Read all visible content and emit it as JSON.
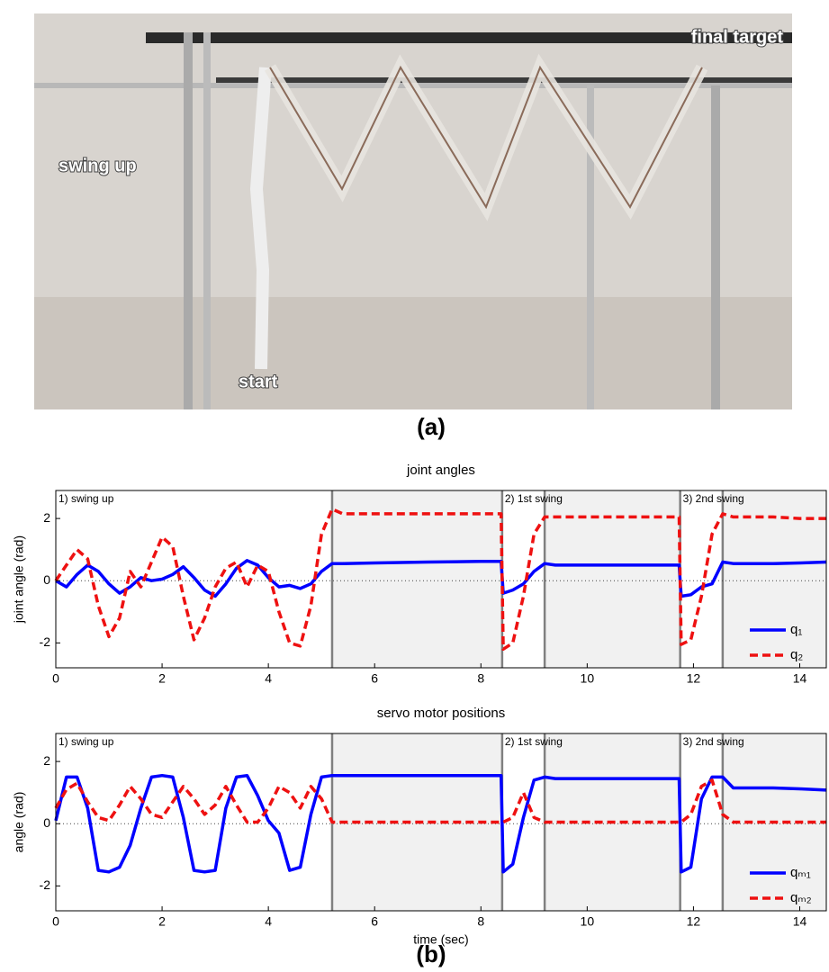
{
  "photo": {
    "labels": [
      "final target",
      "swing up",
      "start"
    ],
    "caption": "(a)"
  },
  "caption_b": "(b)",
  "chart_data": [
    {
      "type": "line",
      "title": "joint angles",
      "ylabel": "joint angle (rad)",
      "xlim": [
        0,
        14.5
      ],
      "xticks": [
        0,
        2,
        4,
        6,
        8,
        10,
        12,
        14
      ],
      "ylim": [
        -2.8,
        2.9
      ],
      "yticks": [
        -2,
        0,
        2
      ],
      "zero_line": true,
      "legend": "lower right",
      "shaded_regions": [
        [
          5.2,
          8.4
        ],
        [
          9.2,
          11.75
        ],
        [
          12.55,
          14.5
        ]
      ],
      "annotations": [
        {
          "text": "1) swing up",
          "x": 0
        },
        {
          "text": "2) 1st swing",
          "x": 8.4
        },
        {
          "text": "3) 2nd swing",
          "x": 11.75
        }
      ],
      "x": [
        0,
        0.2,
        0.4,
        0.6,
        0.8,
        1.0,
        1.2,
        1.4,
        1.6,
        1.8,
        2.0,
        2.2,
        2.4,
        2.6,
        2.8,
        3.0,
        3.2,
        3.4,
        3.6,
        3.8,
        4.0,
        4.2,
        4.4,
        4.6,
        4.8,
        5.0,
        5.2,
        5.4,
        6,
        7,
        8,
        8.38,
        8.42,
        8.6,
        8.8,
        9.0,
        9.2,
        9.4,
        10,
        11,
        11.73,
        11.77,
        11.95,
        12.15,
        12.35,
        12.55,
        12.75,
        13.5,
        14,
        14.5
      ],
      "series": [
        {
          "name": "q₁",
          "color": "#0000ff",
          "dashed": false,
          "values": [
            0,
            -0.2,
            0.2,
            0.5,
            0.3,
            -0.1,
            -0.4,
            -0.2,
            0.1,
            0,
            0.05,
            0.2,
            0.45,
            0.1,
            -0.3,
            -0.5,
            -0.1,
            0.4,
            0.65,
            0.5,
            0.1,
            -0.2,
            -0.15,
            -0.25,
            -0.1,
            0.3,
            0.55,
            0.55,
            0.57,
            0.6,
            0.62,
            0.62,
            -0.4,
            -0.3,
            -0.1,
            0.3,
            0.55,
            0.5,
            0.5,
            0.5,
            0.5,
            -0.5,
            -0.45,
            -0.2,
            -0.1,
            0.6,
            0.55,
            0.55,
            0.57,
            0.6
          ]
        },
        {
          "name": "q₂",
          "color": "#ee1111",
          "dashed": true,
          "values": [
            0,
            0.5,
            1.0,
            0.7,
            -0.8,
            -1.8,
            -1.2,
            0.3,
            -0.2,
            0.6,
            1.4,
            1.1,
            -0.5,
            -1.9,
            -1.2,
            -0.2,
            0.4,
            0.6,
            -0.2,
            0.5,
            0.3,
            -1.0,
            -2.0,
            -2.1,
            -0.8,
            1.5,
            2.3,
            2.15,
            2.15,
            2.15,
            2.15,
            2.15,
            -2.2,
            -2.0,
            -0.5,
            1.5,
            2.05,
            2.05,
            2.05,
            2.05,
            2.05,
            -2.05,
            -1.9,
            -0.5,
            1.5,
            2.15,
            2.05,
            2.05,
            2.0,
            2.0
          ]
        }
      ]
    },
    {
      "type": "line",
      "title": "servo motor positions",
      "ylabel": "angle (rad)",
      "xlabel": "time (sec)",
      "xlim": [
        0,
        14.5
      ],
      "xticks": [
        0,
        2,
        4,
        6,
        8,
        10,
        12,
        14
      ],
      "ylim": [
        -2.8,
        2.9
      ],
      "yticks": [
        -2,
        0,
        2
      ],
      "zero_line": true,
      "legend": "lower right",
      "shaded_regions": [
        [
          5.2,
          8.4
        ],
        [
          9.2,
          11.75
        ],
        [
          12.55,
          14.5
        ]
      ],
      "annotations": [
        {
          "text": "1) swing up",
          "x": 0
        },
        {
          "text": "2) 1st swing",
          "x": 8.4
        },
        {
          "text": "3) 2nd swing",
          "x": 11.75
        }
      ],
      "x": [
        0,
        0.2,
        0.4,
        0.6,
        0.8,
        1.0,
        1.2,
        1.4,
        1.6,
        1.8,
        2.0,
        2.2,
        2.4,
        2.6,
        2.8,
        3.0,
        3.2,
        3.4,
        3.6,
        3.8,
        4.0,
        4.2,
        4.4,
        4.6,
        4.8,
        5.0,
        5.2,
        5.4,
        6,
        7,
        8,
        8.38,
        8.42,
        8.6,
        8.8,
        9.0,
        9.2,
        9.4,
        10,
        11,
        11.73,
        11.77,
        11.95,
        12.15,
        12.35,
        12.55,
        12.75,
        13.5,
        14,
        14.5
      ],
      "series": [
        {
          "name": "qₘ₁",
          "color": "#0000ff",
          "dashed": false,
          "values": [
            0.1,
            1.5,
            1.5,
            0.5,
            -1.5,
            -1.55,
            -1.4,
            -0.7,
            0.5,
            1.5,
            1.55,
            1.5,
            0.2,
            -1.5,
            -1.55,
            -1.5,
            0.5,
            1.5,
            1.55,
            0.9,
            0.1,
            -0.3,
            -1.5,
            -1.4,
            0.3,
            1.5,
            1.55,
            1.55,
            1.55,
            1.55,
            1.55,
            1.55,
            -1.55,
            -1.3,
            0.2,
            1.4,
            1.5,
            1.45,
            1.45,
            1.45,
            1.45,
            -1.55,
            -1.4,
            0.8,
            1.5,
            1.5,
            1.15,
            1.15,
            1.12,
            1.08
          ]
        },
        {
          "name": "qₘ₂",
          "color": "#ee1111",
          "dashed": true,
          "values": [
            0.5,
            1.1,
            1.3,
            0.7,
            0.2,
            0.1,
            0.6,
            1.2,
            0.8,
            0.3,
            0.2,
            0.7,
            1.2,
            0.8,
            0.3,
            0.6,
            1.2,
            0.6,
            0.05,
            0.05,
            0.5,
            1.2,
            1.0,
            0.5,
            1.2,
            0.8,
            0.05,
            0.05,
            0.05,
            0.05,
            0.05,
            0.05,
            0.05,
            0.2,
            1.0,
            0.2,
            0.05,
            0.05,
            0.05,
            0.05,
            0.05,
            0.05,
            0.3,
            1.2,
            1.4,
            0.3,
            0.05,
            0.05,
            0.05,
            0.05
          ]
        }
      ]
    }
  ]
}
